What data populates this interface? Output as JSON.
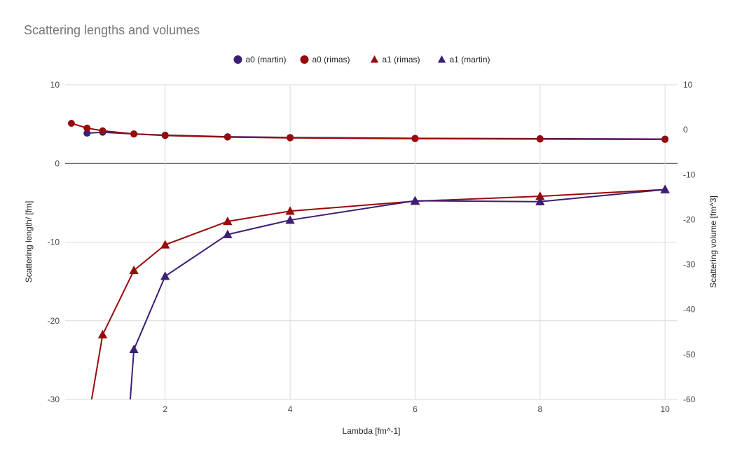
{
  "chart_data": {
    "type": "line",
    "title": "Scattering lengths and volumes",
    "xlabel": "Lambda [fm^-1]",
    "ylabel": "Scattering length/ [fm]",
    "y2label": "Scattering volume [fm^3]",
    "xlim": [
      0.4,
      10.2
    ],
    "ylim": [
      -30,
      10
    ],
    "y2lim": [
      -60,
      10
    ],
    "xticks": [
      2,
      4,
      6,
      8,
      10
    ],
    "yticks": [
      -30,
      -20,
      -10,
      0,
      10
    ],
    "y2ticks": [
      -60,
      -50,
      -40,
      -30,
      -20,
      -10,
      0,
      10
    ],
    "grid": true,
    "legend_position": "top",
    "series": [
      {
        "name": "a0 (martin)",
        "axis": "left",
        "marker": "circle",
        "color": "#3c1f74",
        "x": [
          0.75,
          1.0,
          1.5,
          2.0,
          3.0,
          4.0,
          6.0,
          8.0,
          10.0
        ],
        "y": [
          3.85,
          3.97,
          3.75,
          3.6,
          3.4,
          3.3,
          3.2,
          3.15,
          3.1
        ]
      },
      {
        "name": "a0 (rimas)",
        "axis": "left",
        "marker": "circle",
        "color": "#990a0a",
        "x": [
          0.5,
          0.75,
          1.0,
          1.5,
          2.0,
          3.0,
          4.0,
          6.0,
          8.0,
          10.0
        ],
        "y": [
          5.1,
          4.5,
          4.15,
          3.75,
          3.55,
          3.35,
          3.25,
          3.15,
          3.1,
          3.05
        ]
      },
      {
        "name": "a1 (rimas)",
        "axis": "right",
        "marker": "triangle",
        "color": "#990a0a",
        "x": [
          0.75,
          1.0,
          1.5,
          2.0,
          3.0,
          4.0,
          6.0,
          8.0,
          10.0
        ],
        "y": [
          -66,
          -45.6,
          -31.3,
          -25.6,
          -20.4,
          -18.1,
          -15.9,
          -14.8,
          -13.3
        ]
      },
      {
        "name": "a1 (martin)",
        "axis": "right",
        "marker": "triangle",
        "color": "#3c1f74",
        "x": [
          1.4,
          1.5,
          2.0,
          3.0,
          4.0,
          6.0,
          8.0,
          10.0
        ],
        "y": [
          -68,
          -48.9,
          -32.6,
          -23.3,
          -20.1,
          -15.8,
          -16.0,
          -13.3
        ]
      }
    ]
  }
}
